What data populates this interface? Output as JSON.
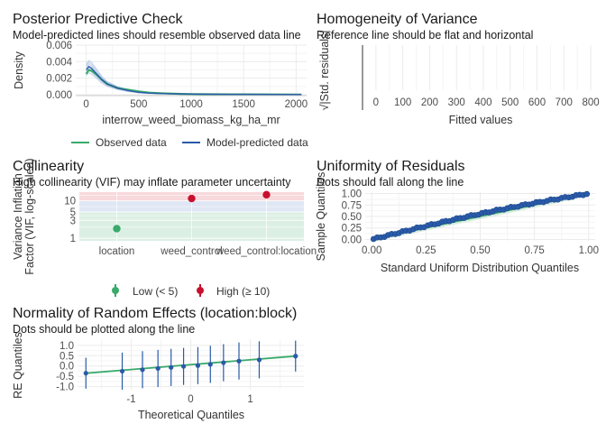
{
  "chart_data": [
    {
      "type": "line",
      "title": "Posterior Predictive Check",
      "subtitle": "Model-predicted lines should resemble observed data line",
      "xlabel": "interrow_weed_biomass_kg_ha_mr",
      "ylabel": "Density",
      "xlim": [
        -100,
        2100
      ],
      "ylim": [
        0,
        0.006
      ],
      "x_ticks": [
        "0",
        "500",
        "1000",
        "1500",
        "2000"
      ],
      "y_ticks": [
        "0.000",
        "0.002",
        "0.004",
        "0.006"
      ],
      "legend": [
        "Observed data",
        "Model-predicted data"
      ],
      "legend_position": "bottom",
      "colors": {
        "observed": "#3aaa6b",
        "predicted": "#2a5aa8"
      },
      "series": [
        {
          "name": "Observed data",
          "x": [
            0,
            25,
            50,
            100,
            150,
            200,
            300,
            400,
            500,
            600,
            700,
            800,
            900,
            1000,
            1200,
            1500,
            1800,
            2050
          ],
          "y": [
            0.0025,
            0.003,
            0.0029,
            0.0024,
            0.0018,
            0.0013,
            0.0008,
            0.0006,
            0.0004,
            0.00025,
            0.00018,
            0.00014,
            0.0001,
            8e-05,
            5e-05,
            4e-05,
            3e-05,
            2e-05
          ]
        },
        {
          "name": "Model-predicted data",
          "x": [
            0,
            25,
            50,
            100,
            150,
            200,
            300,
            400,
            500,
            600,
            700,
            800,
            900,
            1000,
            1200,
            1500,
            1800,
            2050
          ],
          "y": [
            0.003,
            0.0034,
            0.0032,
            0.0025,
            0.0018,
            0.0013,
            0.0008,
            0.0005,
            0.0003,
            0.0002,
            0.00015,
            0.00012,
            0.0001,
            8e-05,
            6e-05,
            4e-05,
            3e-05,
            2e-05
          ]
        }
      ]
    },
    {
      "type": "scatter",
      "title": "Homogeneity of Variance",
      "subtitle": "Reference line should be flat and horizontal",
      "xlabel": "Fitted values",
      "ylabel": "√|Std. residuals|",
      "xlim": [
        -50,
        820
      ],
      "x_ticks": [
        "0",
        "100",
        "200",
        "300",
        "400",
        "500",
        "600",
        "700",
        "800"
      ]
    },
    {
      "type": "scatter",
      "title": "Collinearity",
      "subtitle": "High collinearity (VIF) may inflate parameter uncertainty",
      "xlabel": "",
      "ylabel": "Variance Inflation\nFactor (VIF, log-scaled)",
      "y_scale": "log",
      "y_ticks": [
        "1",
        "3",
        "5",
        "10"
      ],
      "categories": [
        "location",
        "weed_control",
        "weed_control:location"
      ],
      "values": [
        1.8,
        11.5,
        14.5
      ],
      "groups": [
        "Low (< 5)",
        "High (≥ 10)",
        "High (≥ 10)"
      ],
      "legend": [
        "Low (< 5)",
        "High (≥ 10)"
      ],
      "legend_position": "bottom",
      "colors": {
        "low": "#3aaa6b",
        "high": "#c8102e"
      }
    },
    {
      "type": "scatter",
      "title": "Uniformity of Residuals",
      "subtitle": "Dots should fall along the line",
      "xlabel": "Standard Uniform Distribution Quantiles",
      "ylabel": "Sample Quantiles",
      "xlim": [
        -0.03,
        1.03
      ],
      "ylim": [
        -0.03,
        1.03
      ],
      "x_ticks": [
        "0.00",
        "0.25",
        "0.50",
        "0.75",
        "1.00"
      ],
      "y_ticks": [
        "0.00",
        "0.25",
        "0.50",
        "0.75",
        "1.00"
      ],
      "n_points": 60
    },
    {
      "type": "scatter",
      "title": "Normality of Random Effects (location:block)",
      "subtitle": "Dots should be plotted along the line",
      "xlabel": "Theoretical Quantiles",
      "ylabel": "RE Quantiles",
      "xlim": [
        -1.9,
        1.9
      ],
      "ylim": [
        -1.15,
        1.3
      ],
      "x_ticks": [
        "-1",
        "0",
        "1"
      ],
      "y_ticks": [
        "-1.0",
        "-0.5",
        "0.0",
        "0.5",
        "1.0"
      ],
      "x": [
        -1.76,
        -1.15,
        -0.81,
        -0.55,
        -0.33,
        -0.12,
        0.12,
        0.33,
        0.55,
        0.81,
        1.15,
        1.76
      ],
      "y": [
        -0.35,
        -0.25,
        -0.18,
        -0.12,
        -0.07,
        -0.02,
        0.02,
        0.08,
        0.16,
        0.24,
        0.3,
        0.48
      ],
      "error_halfwidth": [
        0.75,
        0.9,
        0.9,
        0.9,
        0.9,
        0.9,
        0.9,
        0.9,
        0.9,
        0.9,
        0.9,
        0.75
      ],
      "colors": {
        "points": "#2a5aa8",
        "line": "#3aaa6b"
      }
    }
  ]
}
